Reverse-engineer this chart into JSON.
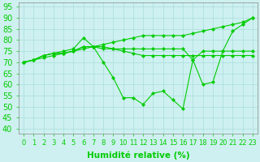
{
  "x": [
    0,
    1,
    2,
    3,
    4,
    5,
    6,
    7,
    8,
    9,
    10,
    11,
    12,
    13,
    14,
    15,
    16,
    17,
    18,
    19,
    20,
    21,
    22,
    23
  ],
  "line_rising": [
    70,
    71,
    72,
    73,
    74,
    75,
    76,
    77,
    78,
    79,
    80,
    81,
    82,
    82,
    82,
    82,
    82,
    83,
    84,
    85,
    86,
    87,
    88,
    90
  ],
  "line_upper": [
    70,
    71,
    73,
    74,
    75,
    76,
    81,
    77,
    77,
    76,
    76,
    76,
    76,
    76,
    76,
    76,
    76,
    71,
    75,
    75,
    75,
    75,
    75,
    75
  ],
  "line_mid": [
    70,
    71,
    73,
    74,
    74,
    75,
    77,
    77,
    76,
    76,
    75,
    74,
    73,
    73,
    73,
    73,
    73,
    73,
    73,
    73,
    73,
    73,
    73,
    73
  ],
  "line_dipping": [
    70,
    71,
    73,
    74,
    74,
    75,
    77,
    77,
    70,
    63,
    54,
    54,
    51,
    56,
    57,
    53,
    49,
    71,
    60,
    61,
    75,
    84,
    87,
    90
  ],
  "bg_color": "#cef0f0",
  "grid_color": "#aadddd",
  "line_color": "#00cc00",
  "ylabel_ticks": [
    40,
    45,
    50,
    55,
    60,
    65,
    70,
    75,
    80,
    85,
    90,
    95
  ],
  "xlabel": "Humidité relative (%)",
  "ylim": [
    38,
    97
  ],
  "xlim": [
    -0.5,
    23.5
  ],
  "tick_fontsize": 6,
  "label_fontsize": 7.5
}
